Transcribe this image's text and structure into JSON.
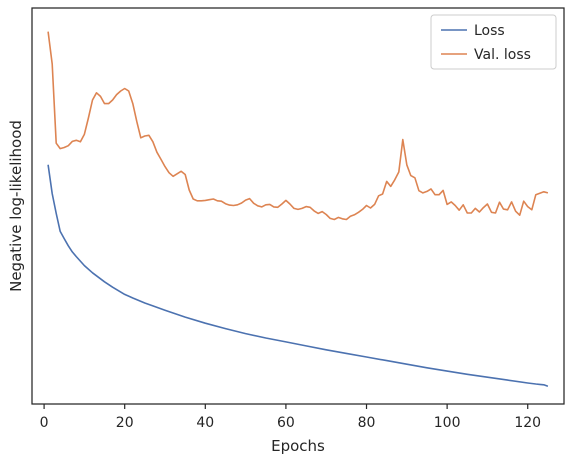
{
  "chart_data": {
    "type": "line",
    "title": "",
    "xlabel": "Epochs",
    "ylabel": "Negative log-likelihood",
    "xlim": [
      -3,
      129
    ],
    "ylim": [
      0,
      100
    ],
    "x_ticks": [
      0,
      20,
      40,
      60,
      80,
      100,
      120
    ],
    "y_ticks_shown": false,
    "grid": false,
    "legend_position": "top-right",
    "series": [
      {
        "name": "Loss",
        "color": "#4c72b0",
        "x": [
          1,
          2,
          3,
          4,
          5,
          6,
          7,
          8,
          10,
          12,
          15,
          17,
          20,
          22,
          25,
          27,
          30,
          35,
          40,
          45,
          50,
          55,
          60,
          65,
          70,
          75,
          80,
          85,
          90,
          95,
          100,
          105,
          110,
          115,
          120,
          122,
          123,
          124,
          125
        ],
        "values": [
          62,
          54,
          48.5,
          43.5,
          41.5,
          39.5,
          37.8,
          36.5,
          34,
          32,
          29.5,
          28,
          26,
          25,
          23.6,
          22.8,
          21.6,
          19.7,
          18,
          16.5,
          15.1,
          13.9,
          12.8,
          11.7,
          10.6,
          9.6,
          8.6,
          7.6,
          6.6,
          5.6,
          4.7,
          3.8,
          3,
          2.2,
          1.4,
          1.1,
          1,
          0.9,
          0.5
        ]
      },
      {
        "name": "Val. loss",
        "color": "#dd8452",
        "x": [
          1,
          2,
          3,
          4,
          5,
          6,
          7,
          8,
          9,
          10,
          11,
          12,
          13,
          14,
          15,
          16,
          17,
          18,
          19,
          20,
          21,
          22,
          23,
          24,
          25,
          26,
          27,
          28,
          29,
          30,
          31,
          32,
          33,
          34,
          35,
          36,
          37,
          38,
          39,
          40,
          41,
          42,
          43,
          44,
          45,
          46,
          47,
          48,
          49,
          50,
          51,
          52,
          53,
          54,
          55,
          56,
          57,
          58,
          59,
          60,
          61,
          62,
          63,
          64,
          65,
          66,
          67,
          68,
          69,
          70,
          71,
          72,
          73,
          74,
          75,
          76,
          77,
          78,
          79,
          80,
          81,
          82,
          83,
          84,
          85,
          86,
          87,
          88,
          89,
          90,
          91,
          92,
          93,
          94,
          95,
          96,
          97,
          98,
          99,
          100,
          101,
          102,
          103,
          104,
          105,
          106,
          107,
          108,
          109,
          110,
          111,
          112,
          113,
          114,
          115,
          116,
          117,
          118,
          119,
          120,
          121,
          122,
          123,
          124,
          125
        ],
        "values": [
          99,
          90,
          68,
          66.5,
          66.8,
          67.3,
          68.5,
          68.8,
          68.4,
          70.5,
          75,
          80,
          82,
          81,
          79,
          79,
          80,
          81.5,
          82.5,
          83.2,
          82.5,
          79,
          74,
          69.5,
          70,
          70.2,
          68.4,
          65.5,
          63.5,
          61.5,
          59.8,
          58.8,
          59.5,
          60.2,
          59.3,
          55,
          52.5,
          52,
          52,
          52.1,
          52.3,
          52.5,
          52,
          51.9,
          51.2,
          50.8,
          50.7,
          50.9,
          51.4,
          52.2,
          52.6,
          51.3,
          50.6,
          50.3,
          50.9,
          51,
          50.3,
          50.2,
          51.1,
          52.1,
          51.1,
          49.9,
          49.6,
          49.9,
          50.4,
          50.2,
          49.2,
          48.5,
          49,
          48.2,
          47.1,
          46.8,
          47.4,
          47,
          46.8,
          47.7,
          48.1,
          48.8,
          49.6,
          50.7,
          50,
          51,
          53.4,
          53.9,
          57.4,
          56,
          57.8,
          60,
          69,
          62,
          59,
          58.4,
          54.8,
          54.2,
          54.6,
          55.3,
          53.7,
          53.7,
          54.9,
          51,
          51.7,
          50.7,
          49.4,
          50.9,
          48.6,
          48.6,
          49.9,
          48.9,
          50.1,
          51.1,
          48.8,
          48.6,
          51.6,
          49.7,
          49.5,
          51.7,
          49.1,
          48,
          51.9,
          50.4,
          49.5,
          53.7,
          54.1,
          54.5,
          54.2
        ]
      }
    ]
  }
}
